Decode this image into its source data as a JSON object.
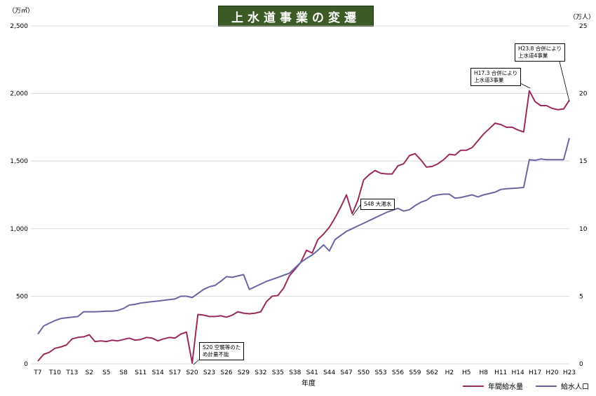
{
  "chart_data": {
    "type": "line",
    "title": "上水道事業の変遷",
    "xlabel": "年度",
    "y_left_unit": "（万㎥）",
    "y_right_unit": "（万人）",
    "y_left_lim": [
      0,
      2500
    ],
    "y_right_lim": [
      0,
      25
    ],
    "y_left_ticks": [
      "0",
      "500",
      "1,000",
      "1,500",
      "2,000",
      "2,500"
    ],
    "y_right_ticks": [
      "0",
      "5",
      "10",
      "15",
      "20",
      "25"
    ],
    "x_tick_labels": [
      "T7",
      "T10",
      "T13",
      "S2",
      "S5",
      "S8",
      "S11",
      "S14",
      "S17",
      "S20",
      "S23",
      "S26",
      "S29",
      "S32",
      "S35",
      "S38",
      "S41",
      "S44",
      "S47",
      "S50",
      "S53",
      "S56",
      "S59",
      "S62",
      "H2",
      "H5",
      "H8",
      "H11",
      "H14",
      "H17",
      "H20",
      "H23"
    ],
    "x_count": 94,
    "grid": "horizontal",
    "legend_position": "bottom-right",
    "series": [
      {
        "name": "年間給水量",
        "axis": "left",
        "color": "#9b2a5c",
        "values": [
          20,
          70,
          85,
          115,
          125,
          140,
          185,
          195,
          200,
          215,
          165,
          170,
          165,
          175,
          170,
          180,
          190,
          175,
          180,
          195,
          190,
          170,
          185,
          195,
          190,
          220,
          235,
          5,
          365,
          360,
          350,
          350,
          355,
          345,
          360,
          385,
          375,
          370,
          375,
          385,
          460,
          500,
          505,
          560,
          650,
          700,
          750,
          840,
          820,
          920,
          960,
          1010,
          1080,
          1160,
          1250,
          1110,
          1210,
          1360,
          1400,
          1430,
          1410,
          1405,
          1405,
          1465,
          1480,
          1540,
          1555,
          1510,
          1455,
          1460,
          1480,
          1510,
          1550,
          1545,
          1580,
          1580,
          1600,
          1650,
          1700,
          1740,
          1780,
          1770,
          1750,
          1750,
          1730,
          1715,
          2020,
          1940,
          1910,
          1910,
          1890,
          1880,
          1885,
          1950
        ]
      },
      {
        "name": "給水人口",
        "axis": "right",
        "color": "#6a66a3",
        "values": [
          2.2,
          2.8,
          3.0,
          3.2,
          3.35,
          3.4,
          3.45,
          3.5,
          3.85,
          3.85,
          3.85,
          3.87,
          3.9,
          3.9,
          3.95,
          4.1,
          4.35,
          4.4,
          4.5,
          4.55,
          4.6,
          4.65,
          4.7,
          4.75,
          4.8,
          5.0,
          5.0,
          4.9,
          5.2,
          5.5,
          5.7,
          5.8,
          6.1,
          6.45,
          6.4,
          6.5,
          6.6,
          5.5,
          5.7,
          5.9,
          6.1,
          6.25,
          6.4,
          6.55,
          6.7,
          7.1,
          7.5,
          7.8,
          8.05,
          8.4,
          8.8,
          8.35,
          9.2,
          9.5,
          9.8,
          10.0,
          10.2,
          10.4,
          10.6,
          10.8,
          11.0,
          11.2,
          11.35,
          11.5,
          11.3,
          11.4,
          11.7,
          11.95,
          12.1,
          12.4,
          12.5,
          12.55,
          12.55,
          12.25,
          12.3,
          12.4,
          12.5,
          12.35,
          12.5,
          12.6,
          12.7,
          12.9,
          12.95,
          12.98,
          13.0,
          13.05,
          15.1,
          15.05,
          15.15,
          15.1,
          15.1,
          15.1,
          15.1,
          16.7
        ]
      }
    ],
    "annotations": [
      {
        "text": "S20 空襲等のため計量不能",
        "line1": "S20 空襲等のた",
        "line2": "め計量不能"
      },
      {
        "text": "S48 大渇水",
        "line1": "S48 大渇水"
      },
      {
        "text": "H17.3 合併により上水道3事業",
        "line1": "H17.3 合併により",
        "line2": "上水道3事業"
      },
      {
        "text": "H23.8 合併により上水道4事業",
        "line1": "H23.8 合併により",
        "line2": "上水道4事業"
      }
    ]
  }
}
